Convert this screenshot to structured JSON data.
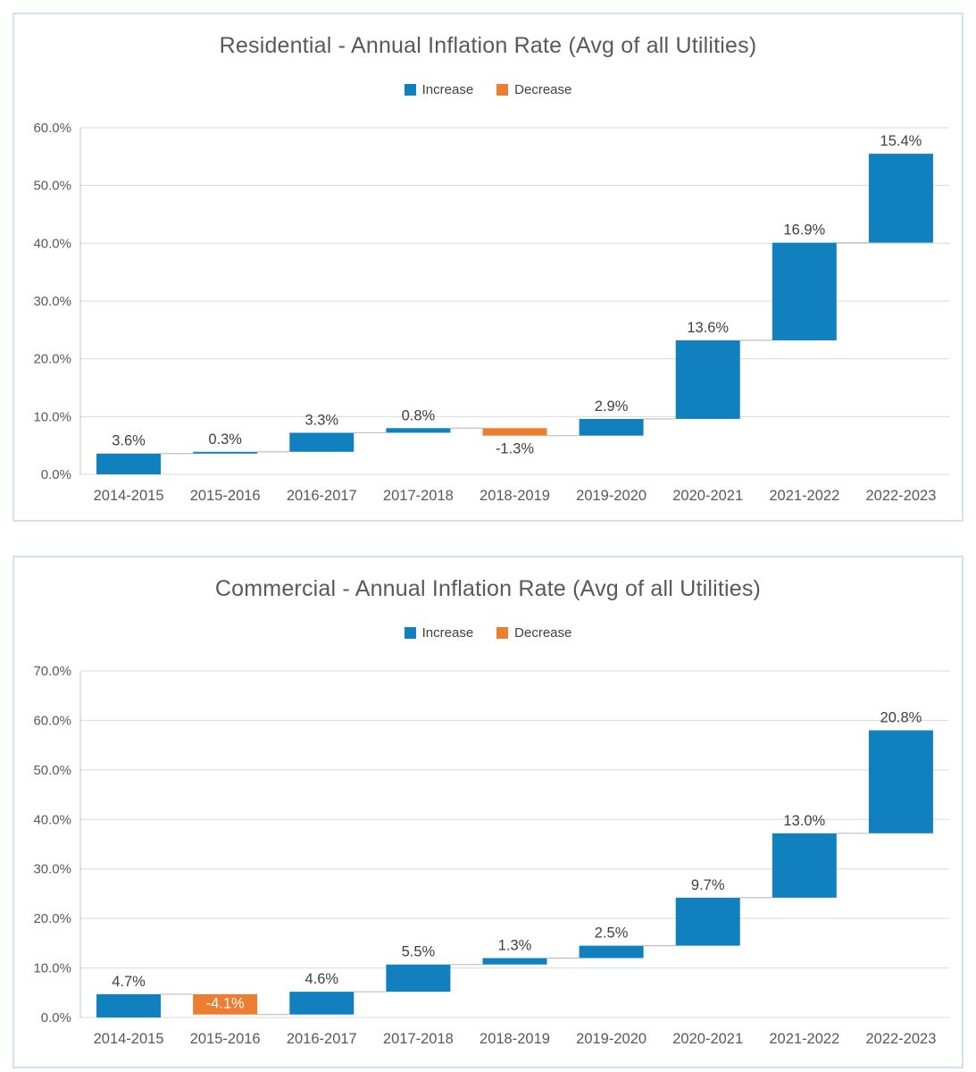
{
  "colors": {
    "increase": "#1180BE",
    "decrease": "#ED7D31",
    "grid": "#D9D9D9",
    "axis_line": "#C6C6C6",
    "connector": "#BFBFBF",
    "tick_text": "#595959",
    "category_text": "#595959",
    "label_text": "#404040",
    "inside_label_text": "#FFFFFF",
    "panel_border": "#D3E3EE",
    "title_text": "#595959"
  },
  "chart_data": [
    {
      "type": "bar",
      "subtype": "waterfall",
      "title": "Residential - Annual Inflation Rate (Avg of all Utilities)",
      "legend": [
        {
          "label": "Increase",
          "color": "#1180BE"
        },
        {
          "label": "Decrease",
          "color": "#ED7D31"
        }
      ],
      "legend_position": "top",
      "grid": true,
      "categories": [
        "2014-2015",
        "2015-2016",
        "2016-2017",
        "2017-2018",
        "2018-2019",
        "2019-2020",
        "2020-2021",
        "2021-2022",
        "2022-2023"
      ],
      "values": [
        3.6,
        0.3,
        3.3,
        0.8,
        -1.3,
        2.9,
        13.6,
        16.9,
        15.4
      ],
      "labels": [
        "3.6%",
        "0.3%",
        "3.3%",
        "0.8%",
        "-1.3%",
        "2.9%",
        "13.6%",
        "16.9%",
        "15.4%"
      ],
      "label_positions": [
        "above",
        "above",
        "above",
        "above",
        "below",
        "above",
        "above",
        "above",
        "above"
      ],
      "cumulative_ends": [
        3.6,
        3.9,
        7.2,
        8.0,
        6.7,
        9.6,
        23.2,
        40.1,
        55.5
      ],
      "ylim": [
        0,
        60
      ],
      "ytick_step": 10,
      "ytick_labels": [
        "0.0%",
        "10.0%",
        "20.0%",
        "30.0%",
        "40.0%",
        "50.0%",
        "60.0%"
      ],
      "xlabel": "",
      "ylabel": ""
    },
    {
      "type": "bar",
      "subtype": "waterfall",
      "title": "Commercial - Annual Inflation Rate (Avg of all Utilities)",
      "legend": [
        {
          "label": "Increase",
          "color": "#1180BE"
        },
        {
          "label": "Decrease",
          "color": "#ED7D31"
        }
      ],
      "legend_position": "top",
      "grid": true,
      "categories": [
        "2014-2015",
        "2015-2016",
        "2016-2017",
        "2017-2018",
        "2018-2019",
        "2019-2020",
        "2020-2021",
        "2021-2022",
        "2022-2023"
      ],
      "values": [
        4.7,
        -4.1,
        4.6,
        5.5,
        1.3,
        2.5,
        9.7,
        13.0,
        20.8
      ],
      "labels": [
        "4.7%",
        "-4.1%",
        "4.6%",
        "5.5%",
        "1.3%",
        "2.5%",
        "9.7%",
        "13.0%",
        "20.8%"
      ],
      "label_positions": [
        "above",
        "inside",
        "above",
        "above",
        "above",
        "above",
        "above",
        "above",
        "above"
      ],
      "cumulative_ends": [
        4.7,
        0.6,
        5.2,
        10.7,
        12.0,
        14.5,
        24.2,
        37.2,
        58.0
      ],
      "ylim": [
        0,
        70
      ],
      "ytick_step": 10,
      "ytick_labels": [
        "0.0%",
        "10.0%",
        "20.0%",
        "30.0%",
        "40.0%",
        "50.0%",
        "60.0%",
        "70.0%"
      ],
      "xlabel": "",
      "ylabel": ""
    }
  ]
}
